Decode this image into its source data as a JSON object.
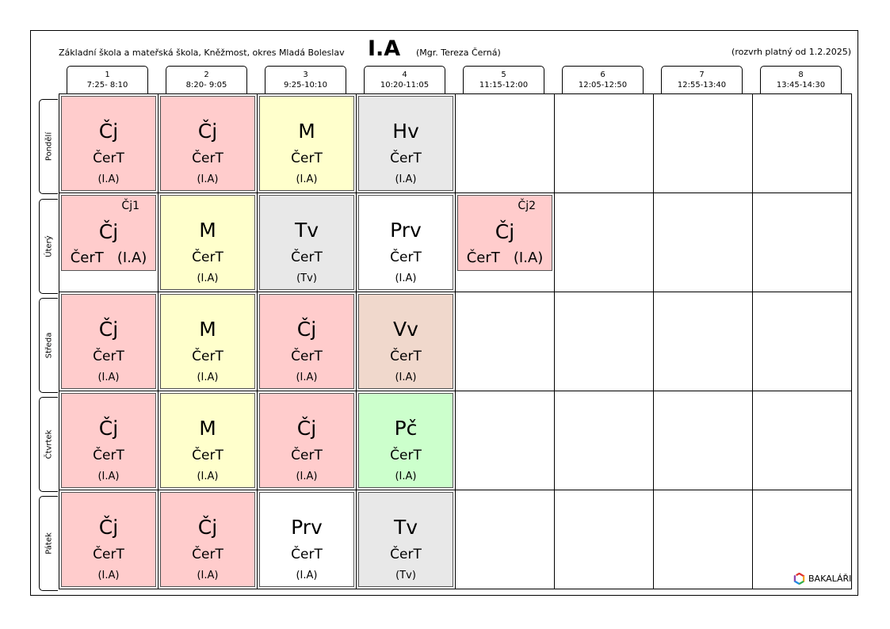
{
  "header": {
    "school": "Základní škola a mateřská škola, Kněžmost, okres Mladá  Boleslav",
    "class": "I.A",
    "teacher": "(Mgr. Tereza Černá)",
    "valid": "(rozvrh platný od 1.2.2025)"
  },
  "periods": [
    {
      "num": "1",
      "time": "7:25- 8:10"
    },
    {
      "num": "2",
      "time": "8:20- 9:05"
    },
    {
      "num": "3",
      "time": "9:25-10:10"
    },
    {
      "num": "4",
      "time": "10:20-11:05"
    },
    {
      "num": "5",
      "time": "11:15-12:00"
    },
    {
      "num": "6",
      "time": "12:05-12:50"
    },
    {
      "num": "7",
      "time": "12:55-13:40"
    },
    {
      "num": "8",
      "time": "13:45-14:30"
    }
  ],
  "days": [
    "Pondělí",
    "Úterý",
    "Středa",
    "Čtvrtek",
    "Pátek"
  ],
  "lessons": {
    "mon": [
      {
        "subject": "Čj",
        "teacher": "ČerT",
        "room": "(I.A)"
      },
      {
        "subject": "Čj",
        "teacher": "ČerT",
        "room": "(I.A)"
      },
      {
        "subject": "M",
        "teacher": "ČerT",
        "room": "(I.A)"
      },
      {
        "subject": "Hv",
        "teacher": "ČerT",
        "room": "(I.A)"
      }
    ],
    "tue": [
      {
        "subject": "Čj",
        "group": "Čj1",
        "teacher_room": "ČerT   (I.A)"
      },
      {
        "subject": "M",
        "teacher": "ČerT",
        "room": "(I.A)"
      },
      {
        "subject": "Tv",
        "teacher": "ČerT",
        "room": "(Tv)"
      },
      {
        "subject": "Prv",
        "teacher": "ČerT",
        "room": "(I.A)"
      },
      {
        "subject": "Čj",
        "group": "Čj2",
        "teacher_room": "ČerT   (I.A)"
      }
    ],
    "wed": [
      {
        "subject": "Čj",
        "teacher": "ČerT",
        "room": "(I.A)"
      },
      {
        "subject": "M",
        "teacher": "ČerT",
        "room": "(I.A)"
      },
      {
        "subject": "Čj",
        "teacher": "ČerT",
        "room": "(I.A)"
      },
      {
        "subject": "Vv",
        "teacher": "ČerT",
        "room": "(I.A)"
      }
    ],
    "thu": [
      {
        "subject": "Čj",
        "teacher": "ČerT",
        "room": "(I.A)"
      },
      {
        "subject": "M",
        "teacher": "ČerT",
        "room": "(I.A)"
      },
      {
        "subject": "Čj",
        "teacher": "ČerT",
        "room": "(I.A)"
      },
      {
        "subject": "Pč",
        "teacher": "ČerT",
        "room": "(I.A)"
      }
    ],
    "fri": [
      {
        "subject": "Čj",
        "teacher": "ČerT",
        "room": "(I.A)"
      },
      {
        "subject": "Čj",
        "teacher": "ČerT",
        "room": "(I.A)"
      },
      {
        "subject": "Prv",
        "teacher": "ČerT",
        "room": "(I.A)"
      },
      {
        "subject": "Tv",
        "teacher": "ČerT",
        "room": "(Tv)"
      }
    ]
  },
  "colors": {
    "cj": "#ffcccc",
    "m": "#ffffcc",
    "gray": "#e8e8e8",
    "white": "#ffffff",
    "vv": "#f0d8cc",
    "pc": "#ccffcc"
  },
  "logo": {
    "text": "BAKALÁŘI",
    "icon": "bakalari-logo-icon"
  }
}
